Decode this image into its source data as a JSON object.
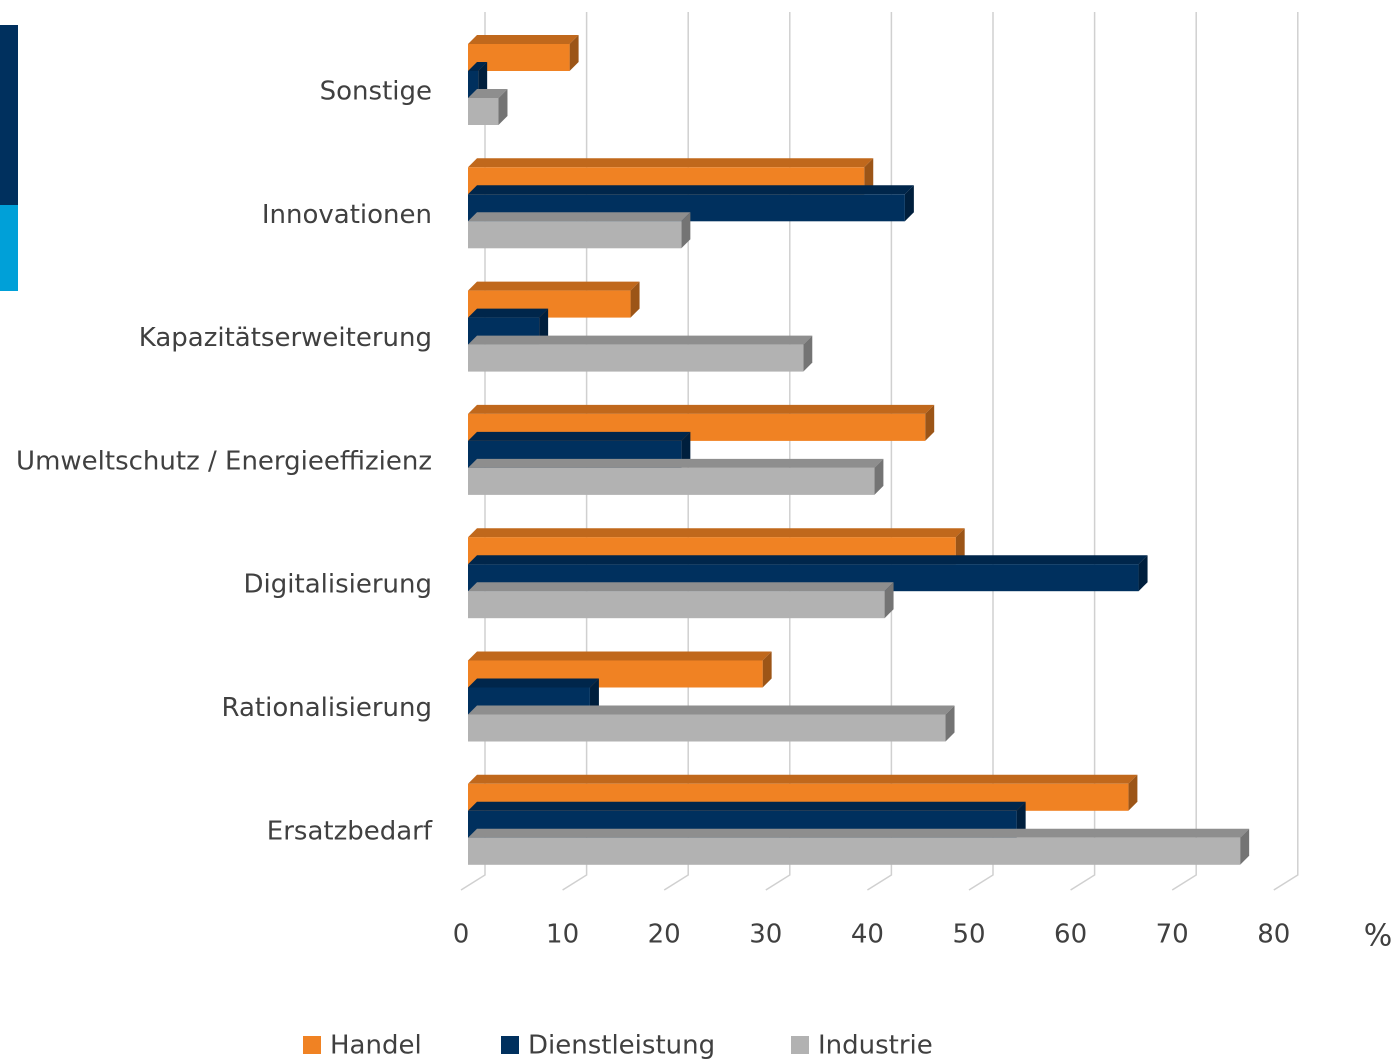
{
  "chart_data": {
    "type": "bar3d_horizontal",
    "categories": [
      "Sonstige",
      "Innovationen",
      "Kapazitätserweiterung",
      "Umweltschutz / Energieeffizienz",
      "Digitalisierung",
      "Rationalisierung",
      "Ersatzbedarf"
    ],
    "series": [
      {
        "name": "Handel",
        "color": "#f08223",
        "values": [
          10,
          39,
          16,
          45,
          48,
          29,
          65
        ]
      },
      {
        "name": "Dienstleistung",
        "color": "#00305e",
        "values": [
          1,
          43,
          7,
          21,
          66,
          12,
          54
        ]
      },
      {
        "name": "Industrie",
        "color": "#b2b2b2",
        "values": [
          3,
          21,
          33,
          40,
          41,
          47,
          76
        ]
      }
    ],
    "xlim": [
      0,
      80
    ],
    "xticks": [
      0,
      10,
      20,
      30,
      40,
      50,
      60,
      70,
      80
    ],
    "x_unit_label": "%",
    "grid": true,
    "legend": "bottom"
  }
}
